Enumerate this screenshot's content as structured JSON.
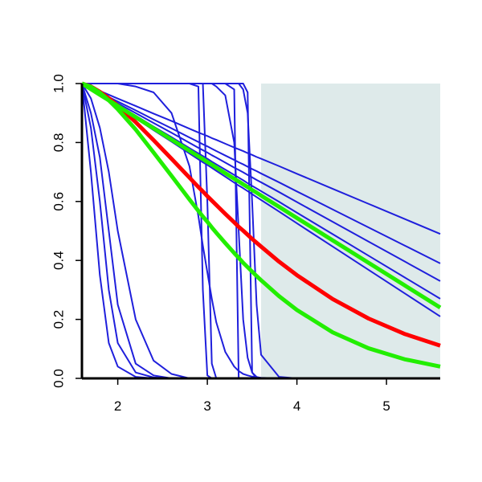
{
  "chart_data": {
    "type": "line",
    "x": [
      1.6,
      1.7,
      1.8,
      1.9,
      2.0,
      2.2,
      2.4,
      2.6,
      2.8,
      2.9,
      2.95,
      3.0,
      3.05,
      3.1,
      3.2,
      3.3,
      3.35,
      3.4,
      3.45,
      3.5,
      3.55,
      3.6,
      3.8,
      4.0,
      4.4,
      4.8,
      5.2,
      5.6
    ],
    "xlim": [
      1.6,
      5.6
    ],
    "xticks": [
      2,
      3,
      4,
      5
    ],
    "ylim": [
      0,
      1
    ],
    "yticks": [
      {
        "value": 0,
        "label": "0.0"
      },
      0.2,
      0.4,
      0.6,
      0.8,
      {
        "value": 1,
        "label": "1.0"
      }
    ],
    "shaded_region": {
      "x": [
        3.6,
        5.6
      ],
      "color": "#deeaea"
    },
    "color": "#1f1fdc",
    "series": [
      {
        "values": [
          1,
          0.7,
          0.35,
          0.12,
          0.04,
          0.005,
          0,
          0,
          0,
          0,
          0,
          0,
          0,
          0,
          0,
          0,
          0,
          0,
          0,
          0,
          0,
          0,
          0,
          0,
          0,
          0,
          0,
          0
        ]
      },
      {
        "values": [
          1,
          0.85,
          0.6,
          0.3,
          0.12,
          0.02,
          0.003,
          0,
          0,
          0,
          0,
          0,
          0,
          0,
          0,
          0,
          0,
          0,
          0,
          0,
          0,
          0,
          0,
          0,
          0,
          0,
          0,
          0
        ]
      },
      {
        "values": [
          1,
          0.9,
          0.75,
          0.5,
          0.25,
          0.05,
          0.01,
          0,
          0,
          0,
          0,
          0,
          0,
          0,
          0,
          0,
          0,
          0,
          0,
          0,
          0,
          0,
          0,
          0,
          0,
          0,
          0,
          0
        ]
      },
      {
        "values": [
          1,
          0.95,
          0.85,
          0.7,
          0.5,
          0.2,
          0.06,
          0.015,
          0,
          0,
          0,
          0,
          0,
          0,
          0,
          0,
          0,
          0,
          0,
          0,
          0,
          0,
          0,
          0,
          0,
          0,
          0,
          0
        ]
      },
      {
        "values": [
          1,
          1,
          1,
          1,
          1,
          0.99,
          0.97,
          0.9,
          0.72,
          0.55,
          0.45,
          0.36,
          0.27,
          0.19,
          0.09,
          0.04,
          0.025,
          0.015,
          0.01,
          0.006,
          0.004,
          0.002,
          0,
          0,
          0,
          0,
          0,
          0
        ]
      },
      {
        "values": [
          1,
          1,
          1,
          1,
          1,
          1,
          1,
          1,
          1,
          0.99,
          0.3,
          0.01,
          0,
          0,
          0,
          0,
          0,
          0,
          0,
          0,
          0,
          0,
          0,
          0,
          0,
          0,
          0,
          0
        ]
      },
      {
        "values": [
          1,
          1,
          1,
          1,
          1,
          1,
          1,
          1,
          1,
          1,
          1,
          0.6,
          0.05,
          0,
          0,
          0,
          0,
          0,
          0,
          0,
          0,
          0,
          0,
          0,
          0,
          0,
          0,
          0
        ]
      },
      {
        "values": [
          1,
          1,
          1,
          1,
          1,
          1,
          1,
          1,
          1,
          1,
          1,
          1,
          1,
          1,
          1,
          0.98,
          0,
          0,
          0,
          0,
          0,
          0,
          0,
          0,
          0,
          0,
          0,
          0
        ]
      },
      {
        "values": [
          1,
          1,
          1,
          1,
          1,
          1,
          1,
          1,
          1,
          1,
          1,
          1,
          1,
          0.99,
          0.96,
          0.8,
          0.5,
          0.2,
          0.07,
          0.02,
          0.005,
          0,
          0,
          0,
          0,
          0,
          0,
          0
        ]
      },
      {
        "values": [
          1,
          1,
          1,
          1,
          1,
          1,
          1,
          1,
          1,
          1,
          1,
          1,
          1,
          1,
          1,
          1,
          1,
          1,
          0.97,
          0.02,
          0,
          0,
          0,
          0,
          0,
          0,
          0,
          0
        ]
      },
      {
        "values": [
          1,
          1,
          1,
          1,
          1,
          1,
          1,
          1,
          1,
          1,
          1,
          1,
          1,
          1,
          1,
          1,
          1,
          0.98,
          0.9,
          0.6,
          0.25,
          0.08,
          0.005,
          0,
          0,
          0,
          0,
          0
        ]
      },
      {
        "values": [
          1,
          0.987,
          0.975,
          0.962,
          0.949,
          0.924,
          0.898,
          0.873,
          0.847,
          0.834,
          0.828,
          0.822,
          0.815,
          0.809,
          0.796,
          0.783,
          0.777,
          0.771,
          0.764,
          0.758,
          0.751,
          0.745,
          0.72,
          0.694,
          0.643,
          0.592,
          0.541,
          0.49
        ]
      },
      {
        "values": [
          1,
          0.985,
          0.97,
          0.954,
          0.939,
          0.909,
          0.878,
          0.848,
          0.817,
          0.802,
          0.794,
          0.787,
          0.779,
          0.771,
          0.756,
          0.741,
          0.733,
          0.726,
          0.718,
          0.71,
          0.703,
          0.695,
          0.665,
          0.634,
          0.573,
          0.512,
          0.451,
          0.39
        ]
      },
      {
        "values": [
          1,
          0.983,
          0.967,
          0.95,
          0.933,
          0.9,
          0.866,
          0.833,
          0.799,
          0.782,
          0.774,
          0.766,
          0.757,
          0.749,
          0.732,
          0.715,
          0.707,
          0.699,
          0.69,
          0.682,
          0.673,
          0.665,
          0.632,
          0.598,
          0.531,
          0.464,
          0.397,
          0.33
        ]
      },
      {
        "values": [
          1,
          0.982,
          0.964,
          0.945,
          0.927,
          0.891,
          0.854,
          0.818,
          0.781,
          0.763,
          0.754,
          0.745,
          0.735,
          0.726,
          0.708,
          0.69,
          0.681,
          0.672,
          0.662,
          0.653,
          0.644,
          0.635,
          0.599,
          0.562,
          0.489,
          0.416,
          0.343,
          0.27
        ]
      },
      {
        "values": [
          1,
          0.98,
          0.961,
          0.941,
          0.921,
          0.882,
          0.842,
          0.803,
          0.763,
          0.743,
          0.733,
          0.724,
          0.714,
          0.704,
          0.684,
          0.664,
          0.654,
          0.645,
          0.635,
          0.625,
          0.615,
          0.605,
          0.566,
          0.526,
          0.447,
          0.368,
          0.289,
          0.21
        ]
      },
      {
        "color": "#ff0000",
        "values": [
          1,
          0.99,
          0.972,
          0.95,
          0.925,
          0.869,
          0.808,
          0.745,
          0.681,
          0.649,
          0.634,
          0.618,
          0.603,
          0.588,
          0.558,
          0.529,
          0.514,
          0.501,
          0.487,
          0.473,
          0.46,
          0.447,
          0.396,
          0.35,
          0.269,
          0.203,
          0.151,
          0.111
        ]
      },
      {
        "color": "#22ee00",
        "values": [
          1,
          0.981,
          0.962,
          0.943,
          0.924,
          0.886,
          0.848,
          0.81,
          0.772,
          0.753,
          0.744,
          0.734,
          0.725,
          0.715,
          0.696,
          0.677,
          0.668,
          0.658,
          0.649,
          0.639,
          0.63,
          0.62,
          0.582,
          0.544,
          0.468,
          0.392,
          0.316,
          0.24
        ]
      },
      {
        "color": "#22ee00",
        "values": [
          1,
          0.989,
          0.969,
          0.943,
          0.913,
          0.844,
          0.766,
          0.687,
          0.607,
          0.568,
          0.549,
          0.531,
          0.512,
          0.494,
          0.459,
          0.425,
          0.409,
          0.392,
          0.377,
          0.362,
          0.347,
          0.333,
          0.279,
          0.232,
          0.156,
          0.102,
          0.065,
          0.04
        ]
      }
    ]
  }
}
